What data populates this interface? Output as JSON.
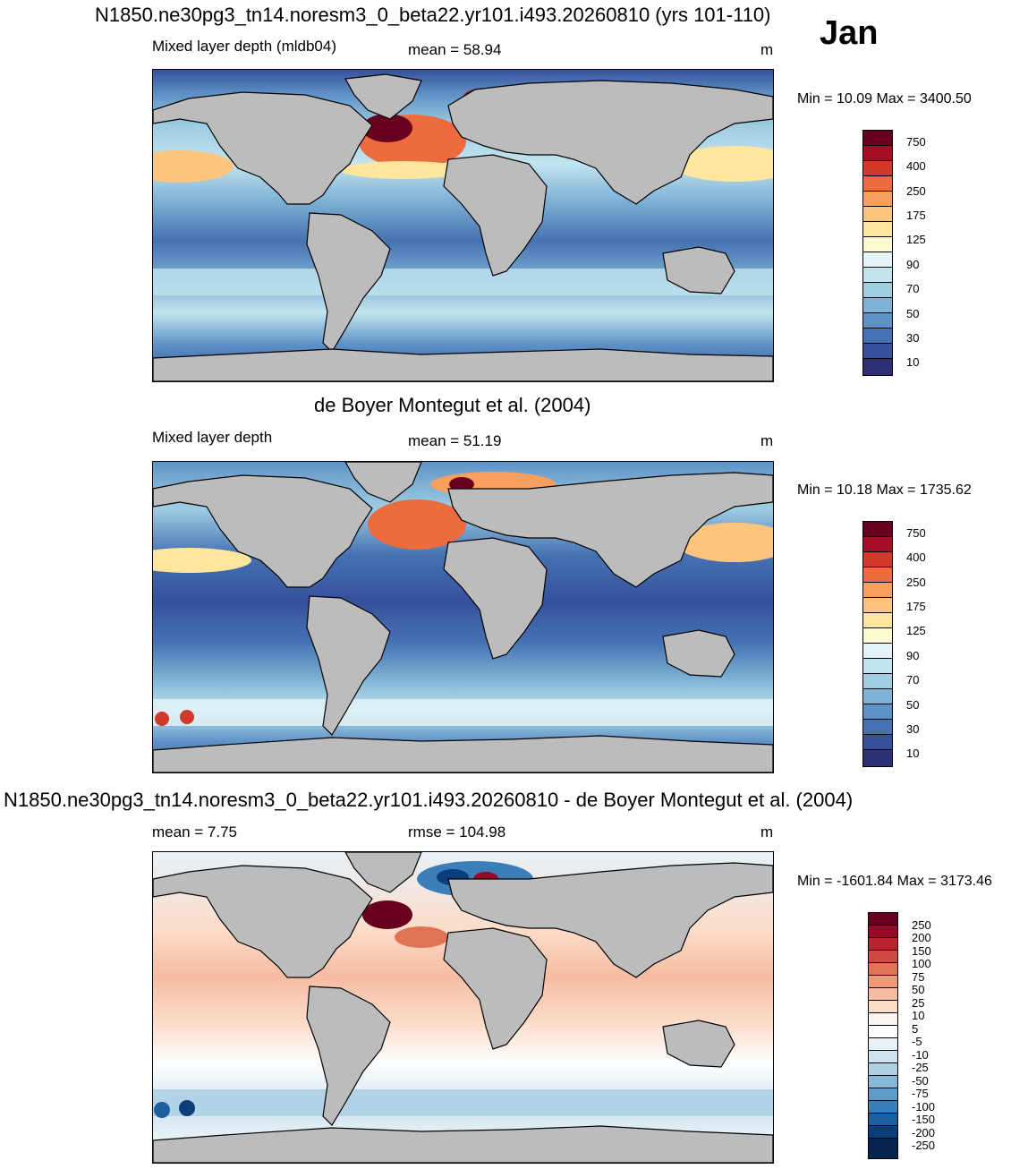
{
  "header": {
    "title": "N1850.ne30pg3_tn14.noresm3_0_beta22.yr101.i493.20260810 (yrs 101-110)",
    "month": "Jan"
  },
  "panels": [
    {
      "left_label": "Mixed layer depth (mldb04)",
      "center_label": "mean =  58.94",
      "right_label": "m",
      "minmax": "Min =  10.09 Max = 3400.50",
      "colorbar_ticks": [
        "750",
        "400",
        "250",
        "175",
        "125",
        "90",
        "70",
        "50",
        "30",
        "10"
      ]
    },
    {
      "panel_title": "de Boyer Montegut et al. (2004)",
      "left_label": "Mixed layer depth",
      "center_label": "mean =  51.19",
      "right_label": "m",
      "minmax": "Min =  10.18 Max = 1735.62",
      "colorbar_ticks": [
        "750",
        "400",
        "250",
        "175",
        "125",
        "90",
        "70",
        "50",
        "30",
        "10"
      ]
    },
    {
      "panel_title": "N1850.ne30pg3_tn14.noresm3_0_beta22.yr101.i493.20260810 - de Boyer Montegut et al. (2004)",
      "left_label": "mean =   7.75",
      "center_label": "rmse = 104.98",
      "right_label": "m",
      "minmax": "Min = -1601.84 Max = 3173.46",
      "colorbar_ticks": [
        "250",
        "200",
        "150",
        "100",
        "75",
        "50",
        "25",
        "10",
        "5",
        "-5",
        "-10",
        "-25",
        "-50",
        "-75",
        "-100",
        "-150",
        "-200",
        "-250"
      ]
    }
  ],
  "colors": {
    "land": "#bcbcbc",
    "seq_palette": [
      "#67001f",
      "#a50f25",
      "#d1392b",
      "#ec6b3f",
      "#f7a05e",
      "#fcc57e",
      "#fee79c",
      "#fefbd0",
      "#e3f3f8",
      "#c2e4ef",
      "#9fcde2",
      "#7eb2d5",
      "#5e93c7",
      "#4572b2",
      "#36509c",
      "#2d2f75"
    ],
    "div_palette": [
      "#67001f",
      "#970a26",
      "#b8242e",
      "#cf4b41",
      "#e07356",
      "#ee9a78",
      "#f6bca2",
      "#fcdcc9",
      "#fff5ef",
      "#ffffff",
      "#e7f1f7",
      "#cfe3ef",
      "#aed0e4",
      "#86b9d8",
      "#5f9cc9",
      "#3b7eb8",
      "#1e5fa0",
      "#0a3d79",
      "#052550"
    ]
  }
}
